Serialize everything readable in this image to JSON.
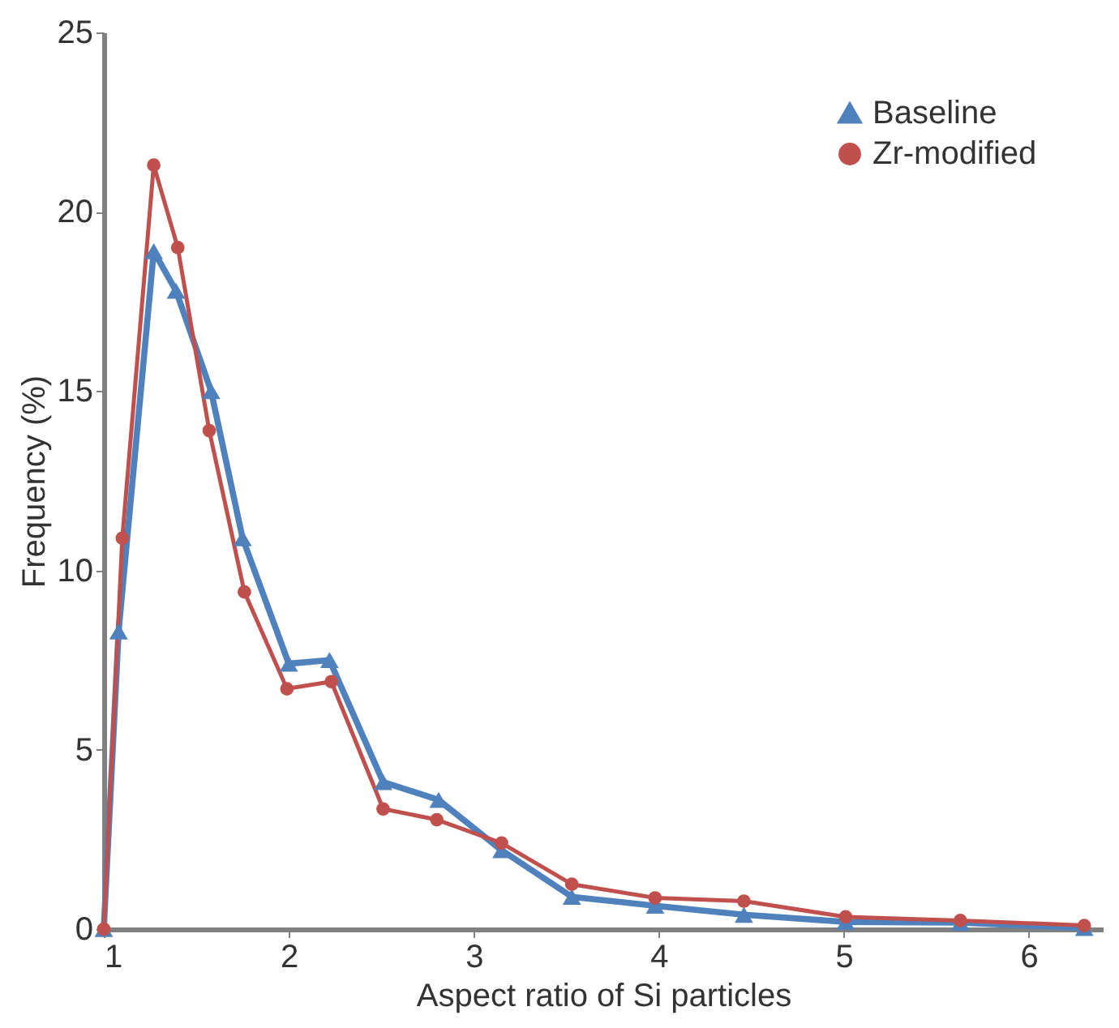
{
  "chart_data": {
    "type": "line",
    "xlabel": "Aspect ratio of Si particles",
    "ylabel": "Frequency  (%)",
    "xlim": [
      1,
      6.4
    ],
    "xticks": [
      1,
      2,
      3,
      4,
      5,
      6
    ],
    "ylim": [
      0,
      25
    ],
    "yticks": [
      0,
      5,
      10,
      15,
      20,
      25
    ],
    "grid": false,
    "legend": "top right",
    "line_style": "solid",
    "series": [
      {
        "name": "Baseline",
        "color": "#4f81bd",
        "marker": "triangle",
        "x": [
          1.0,
          1.08,
          1.27,
          1.39,
          1.58,
          1.75,
          2.0,
          2.22,
          2.51,
          2.81,
          3.15,
          3.53,
          3.98,
          4.46,
          5.01,
          5.63,
          6.3
        ],
        "values": [
          0,
          8.3,
          18.9,
          17.8,
          15.0,
          10.9,
          7.4,
          7.5,
          4.1,
          3.6,
          2.2,
          0.9,
          0.65,
          0.4,
          0.2,
          0.18,
          0.03
        ]
      },
      {
        "name": "Zr-modified",
        "color": "#c0504d",
        "marker": "circle",
        "x": [
          1.0,
          1.1,
          1.27,
          1.4,
          1.57,
          1.76,
          1.99,
          2.23,
          2.51,
          2.8,
          3.15,
          3.53,
          3.98,
          4.46,
          5.01,
          5.63,
          6.3
        ],
        "values": [
          0,
          10.9,
          21.3,
          19.0,
          13.9,
          9.4,
          6.7,
          6.9,
          3.35,
          3.05,
          2.4,
          1.25,
          0.87,
          0.78,
          0.34,
          0.24,
          0.1
        ]
      }
    ]
  }
}
